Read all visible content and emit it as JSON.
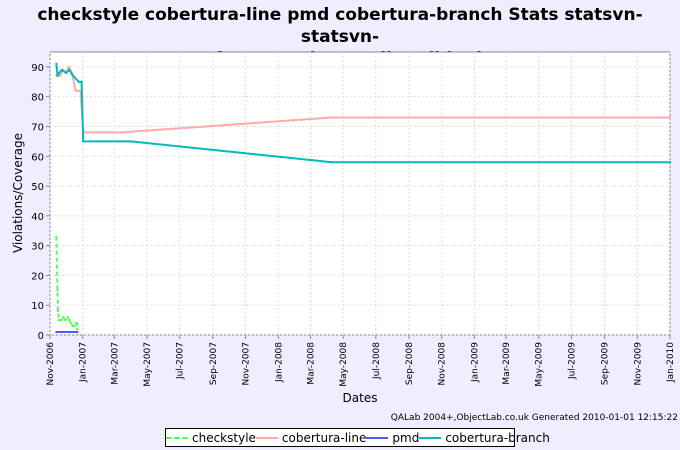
{
  "chart_data": {
    "type": "line",
    "title_line1": "checkstyle cobertura-line pmd cobertura-branch  Stats statsvn-statsvn-",
    "title_line2": "net_sf_statsvn_input_FileBuilder.java",
    "xlabel": "Dates",
    "ylabel": "Violations/Coverage",
    "ylim": [
      0,
      95
    ],
    "yticks": [
      "0",
      "10",
      "20",
      "30",
      "40",
      "50",
      "60",
      "70",
      "80",
      "90"
    ],
    "xlim": [
      "2006-11-01",
      "2010-01-01"
    ],
    "xticks": [
      "Nov-2006",
      "Jan-2007",
      "Mar-2007",
      "May-2007",
      "Jul-2007",
      "Sep-2007",
      "Nov-2007",
      "Jan-2008",
      "Mar-2008",
      "May-2008",
      "Jul-2008",
      "Sep-2008",
      "Nov-2008",
      "Jan-2009",
      "Mar-2009",
      "May-2009",
      "Jul-2009",
      "Sep-2009",
      "Nov-2009",
      "Jan-2010"
    ],
    "xtick_dates": [
      "2006-11-01",
      "2007-01-01",
      "2007-03-01",
      "2007-05-01",
      "2007-07-01",
      "2007-09-01",
      "2007-11-01",
      "2008-01-01",
      "2008-03-01",
      "2008-05-01",
      "2008-07-01",
      "2008-09-01",
      "2008-11-01",
      "2009-01-01",
      "2009-03-01",
      "2009-05-01",
      "2009-07-01",
      "2009-09-01",
      "2009-11-01",
      "2010-01-01"
    ],
    "grid": true,
    "legend_position": "bottom",
    "series": [
      {
        "name": "checkstyle",
        "color": "#55FF55",
        "dash": true,
        "points": [
          [
            "2006-11-13",
            33
          ],
          [
            "2006-11-15",
            15
          ],
          [
            "2006-11-16",
            8
          ],
          [
            "2006-11-18",
            5
          ],
          [
            "2006-11-22",
            5
          ],
          [
            "2006-11-26",
            6
          ],
          [
            "2006-11-30",
            5
          ],
          [
            "2006-12-04",
            6
          ],
          [
            "2006-12-07",
            5
          ],
          [
            "2006-12-10",
            4
          ],
          [
            "2006-12-14",
            3
          ],
          [
            "2006-12-17",
            3
          ],
          [
            "2006-12-19",
            4
          ],
          [
            "2006-12-21",
            4
          ],
          [
            "2006-12-22",
            2
          ]
        ]
      },
      {
        "name": "cobertura-line",
        "color": "#FFAAAA",
        "dash": false,
        "points": [
          [
            "2006-11-13",
            87
          ],
          [
            "2006-11-16",
            88
          ],
          [
            "2006-11-20",
            87
          ],
          [
            "2006-11-25",
            89
          ],
          [
            "2006-12-01",
            88
          ],
          [
            "2006-12-06",
            90
          ],
          [
            "2006-12-12",
            88
          ],
          [
            "2006-12-19",
            82
          ],
          [
            "2006-12-28",
            82
          ],
          [
            "2007-01-02",
            68
          ],
          [
            "2007-03-15",
            68
          ],
          [
            "2008-04-10",
            73
          ],
          [
            "2010-01-01",
            73
          ]
        ]
      },
      {
        "name": "pmd",
        "color": "#5555FF",
        "dash": false,
        "points": [
          [
            "2006-11-13",
            1
          ],
          [
            "2006-12-22",
            1
          ]
        ]
      },
      {
        "name": "cobertura-branch",
        "color": "#00BBBB",
        "dash": false,
        "points": [
          [
            "2006-11-13",
            91
          ],
          [
            "2006-11-15",
            87
          ],
          [
            "2006-11-18",
            88
          ],
          [
            "2006-11-23",
            89
          ],
          [
            "2006-12-01",
            88
          ],
          [
            "2006-12-07",
            89
          ],
          [
            "2006-12-14",
            87
          ],
          [
            "2006-12-25",
            85
          ],
          [
            "2006-12-30",
            85
          ],
          [
            "2007-01-02",
            65
          ],
          [
            "2007-04-01",
            65
          ],
          [
            "2008-04-10",
            58
          ],
          [
            "2010-01-01",
            58
          ]
        ]
      }
    ],
    "credit": "QALab 2004+,ObjectLab.co.uk  Generated 2010-01-01 12:15:22"
  }
}
